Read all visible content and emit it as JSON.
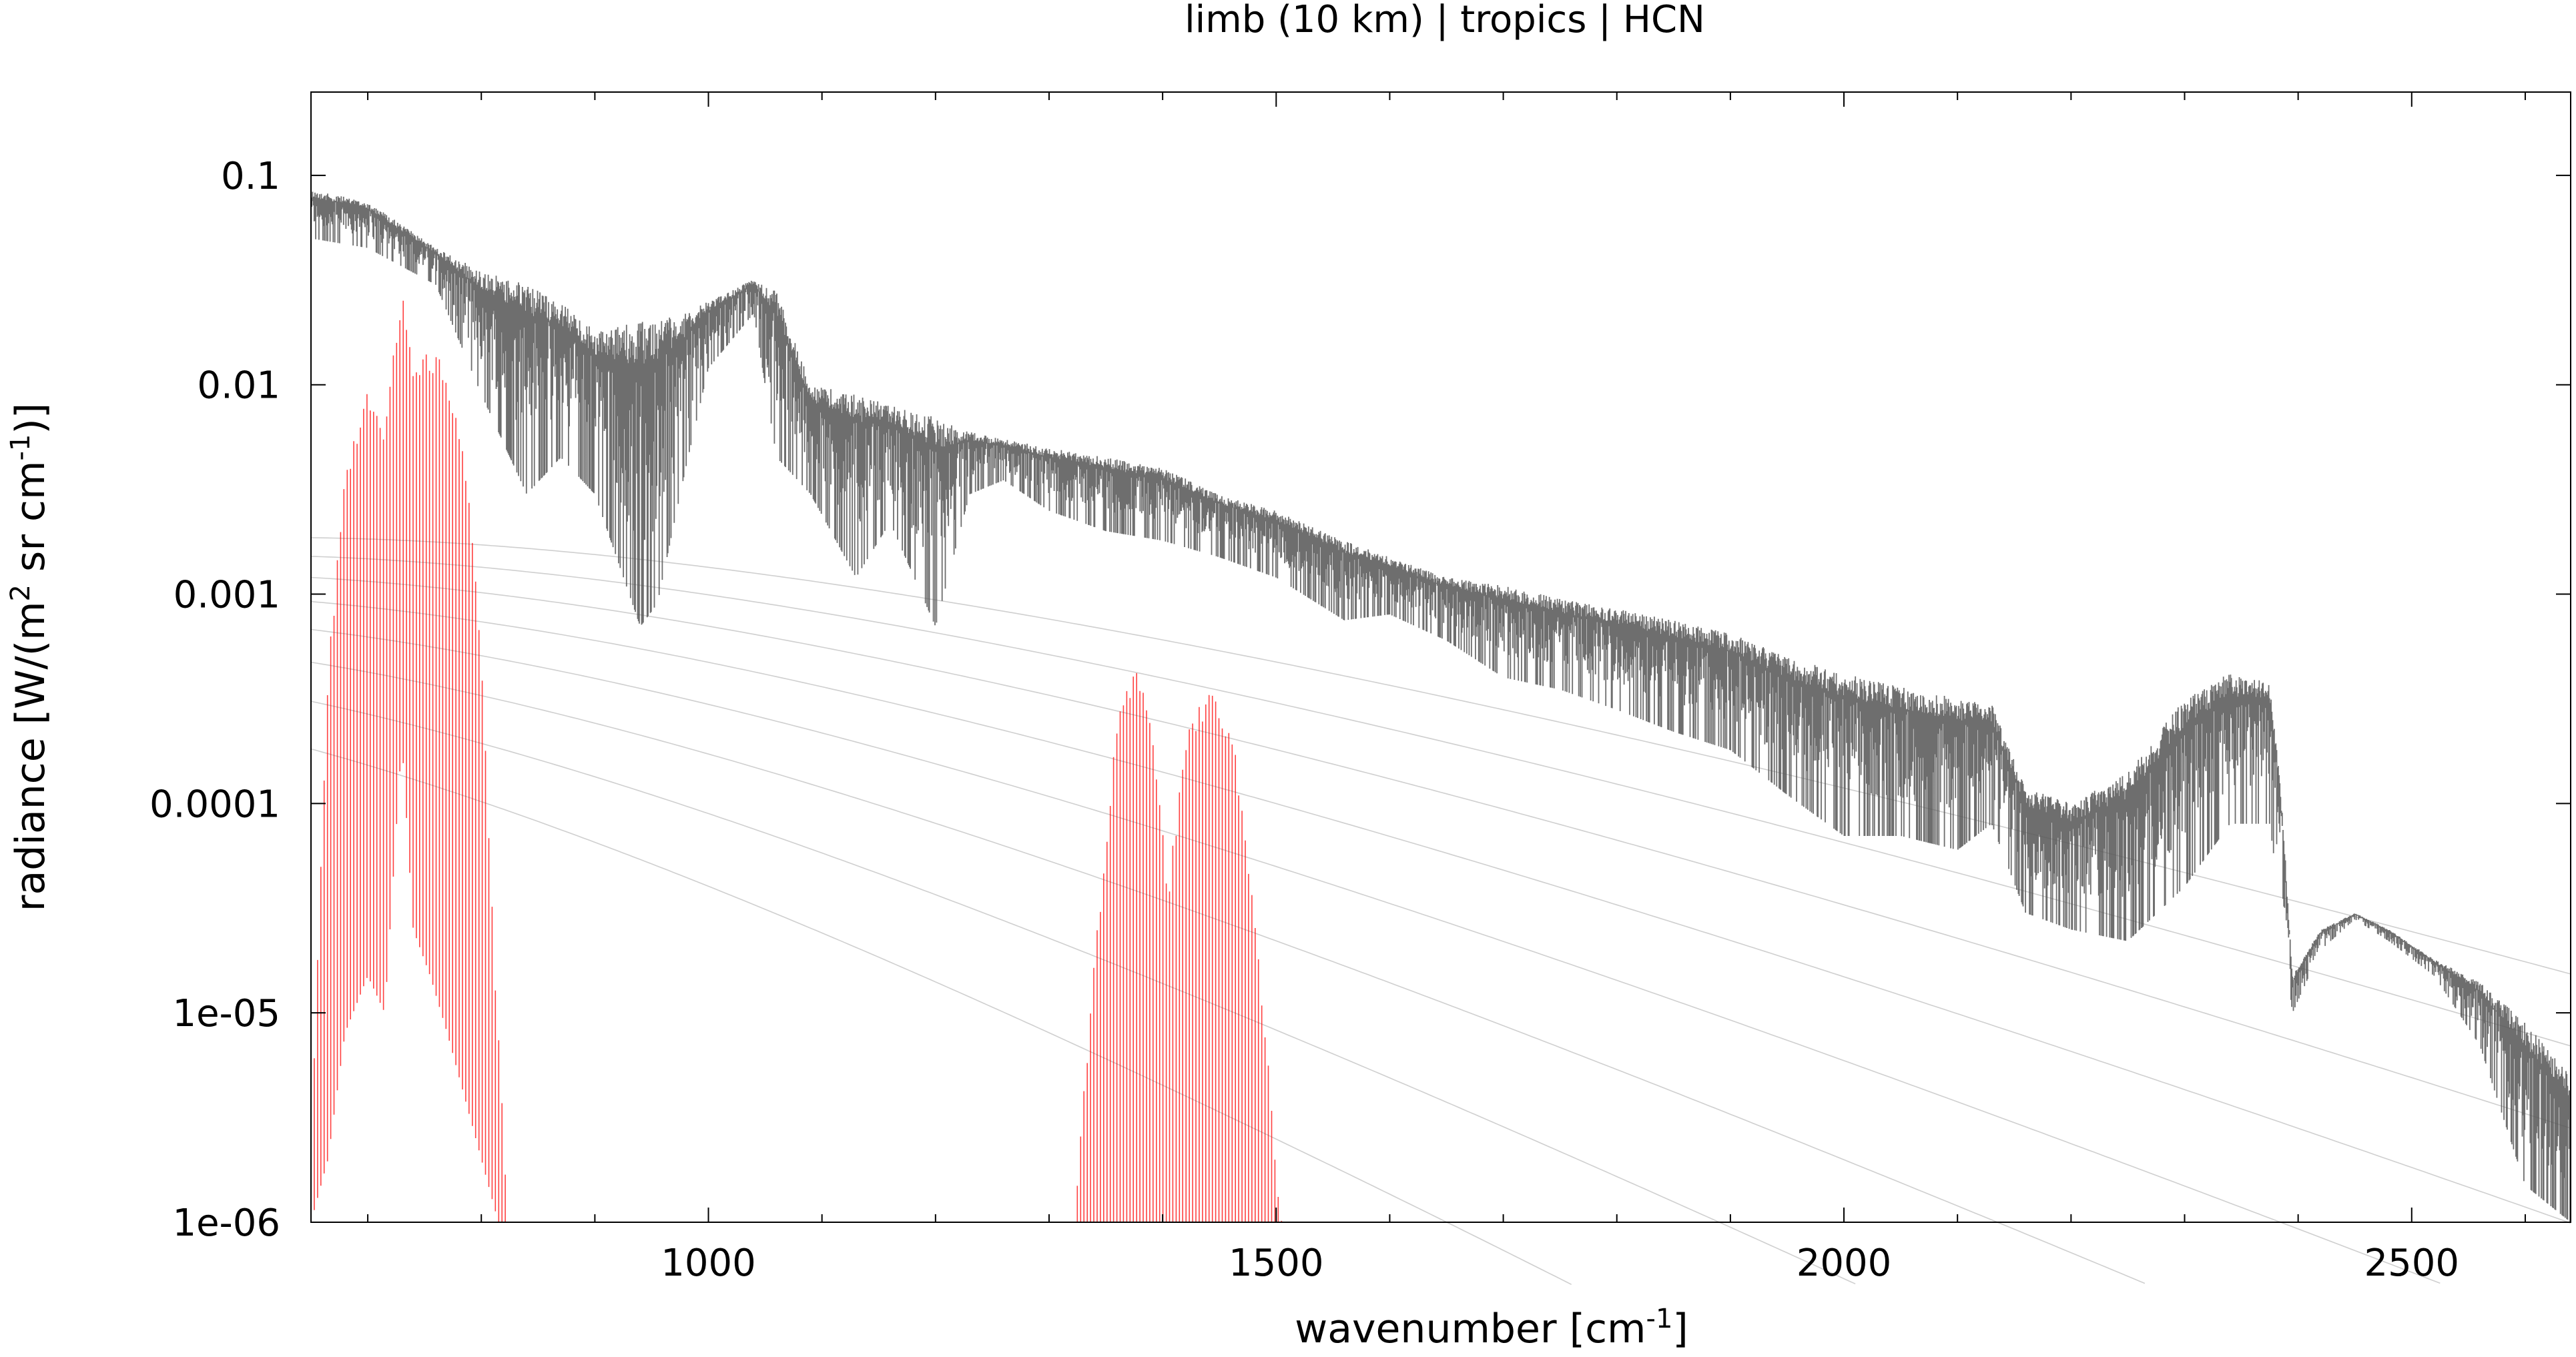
{
  "chart_data": {
    "type": "line",
    "title": "limb (10 km) | tropics | HCN",
    "xlabel_main": "wavenumber [cm",
    "xlabel_sup": "-1",
    "xlabel_end": "]",
    "ylabel_main": "radiance [W/(m",
    "ylabel_sup1": "2",
    "ylabel_mid": " sr cm",
    "ylabel_sup2": "-1",
    "ylabel_end": ")]",
    "xlim": [
      650,
      2640
    ],
    "ylim": [
      1e-06,
      0.25
    ],
    "y_scale": "log",
    "x_ticks": [
      {
        "value": 1000,
        "label": "1000"
      },
      {
        "value": 1500,
        "label": "1500"
      },
      {
        "value": 2000,
        "label": "2000"
      },
      {
        "value": 2500,
        "label": "2500"
      }
    ],
    "y_ticks": [
      {
        "value": 0.1,
        "label": "0.1"
      },
      {
        "value": 0.01,
        "label": "0.01"
      },
      {
        "value": 0.001,
        "label": "0.001"
      },
      {
        "value": 0.0001,
        "label": "0.0001"
      },
      {
        "value": 1e-05,
        "label": "1e-05"
      },
      {
        "value": 1e-06,
        "label": "1e-06"
      }
    ],
    "grid": false,
    "planck_reference_temperatures_K": [
      180,
      200,
      220,
      240,
      260,
      280,
      300,
      320
    ],
    "series": [
      {
        "role": "total-radiance",
        "color": "#555555",
        "envelope_x": [
          650,
          700,
          760,
          800,
          840,
          870,
          900,
          940,
          955,
          980,
          1000,
          1040,
          1060,
          1090,
          1130,
          1160,
          1200,
          1230,
          1260,
          1300,
          1350,
          1400,
          1450,
          1500,
          1560,
          1600,
          1650,
          1700,
          1750,
          1800,
          1850,
          1900,
          1950,
          2000,
          2050,
          2100,
          2130,
          2160,
          2200,
          2250,
          2300,
          2340,
          2375,
          2385,
          2395,
          2420,
          2450,
          2480,
          2520,
          2560,
          2600,
          2640
        ],
        "envelope_upper": [
          0.085,
          0.075,
          0.045,
          0.035,
          0.03,
          0.025,
          0.018,
          0.02,
          0.021,
          0.022,
          0.025,
          0.032,
          0.028,
          0.01,
          0.009,
          0.008,
          0.007,
          0.006,
          0.0055,
          0.005,
          0.0045,
          0.004,
          0.003,
          0.0025,
          0.0018,
          0.0015,
          0.0012,
          0.0011,
          0.00095,
          0.00085,
          0.00075,
          0.00065,
          0.0005,
          0.00042,
          0.00036,
          0.00032,
          0.0003,
          0.00012,
          0.0001,
          0.00014,
          0.00032,
          0.00042,
          0.00038,
          0.00012,
          1.5e-05,
          2.5e-05,
          3e-05,
          2.5e-05,
          1.8e-05,
          1.4e-05,
          9e-06,
          5e-06
        ],
        "envelope_lower": [
          0.05,
          0.045,
          0.03,
          0.009,
          0.003,
          0.0045,
          0.003,
          0.0007,
          0.0009,
          0.004,
          0.012,
          0.022,
          0.0045,
          0.003,
          0.0012,
          0.0022,
          0.0007,
          0.003,
          0.0035,
          0.0025,
          0.002,
          0.0018,
          0.0015,
          0.0012,
          0.00075,
          0.0008,
          0.0006,
          0.0004,
          0.00035,
          0.00028,
          0.00022,
          0.00018,
          0.00011,
          7e-05,
          7e-05,
          6e-05,
          8e-05,
          3e-05,
          2.5e-05,
          2.2e-05,
          4e-05,
          8e-05,
          8e-05,
          3e-05,
          1e-05,
          2e-05,
          2.8e-05,
          2.2e-05,
          1.5e-05,
          7e-06,
          1.5e-06,
          1e-06
        ]
      },
      {
        "role": "HCN-contribution-band-1",
        "color": "#ff0000",
        "envelope_x": [
          650,
          665,
          680,
          700,
          715,
          730,
          740,
          755,
          770,
          785,
          800,
          815,
          825
        ],
        "envelope_upper": [
          3e-06,
          0.0005,
          0.004,
          0.0105,
          0.007,
          0.028,
          0.012,
          0.015,
          0.012,
          0.005,
          0.0006,
          8e-06,
          1e-06
        ],
        "envelope_lower": [
          1e-06,
          2e-06,
          8e-06,
          1.5e-05,
          1e-05,
          0.0002,
          2.5e-05,
          1.5e-05,
          8e-06,
          4e-06,
          2e-06,
          1e-06,
          1e-06
        ]
      },
      {
        "role": "HCN-contribution-band-2",
        "color": "#ff0000",
        "envelope_x": [
          1322,
          1340,
          1360,
          1375,
          1390,
          1405,
          1420,
          1440,
          1460,
          1480,
          1505
        ],
        "envelope_upper": [
          1e-06,
          2e-05,
          0.00025,
          0.00045,
          0.0003,
          4e-05,
          0.00022,
          0.00036,
          0.00025,
          4e-05,
          1e-06
        ],
        "envelope_lower": [
          1e-06,
          1e-06,
          1e-06,
          1e-06,
          1e-06,
          1e-06,
          1e-06,
          1e-06,
          1e-06,
          1e-06,
          1e-06
        ]
      }
    ]
  }
}
